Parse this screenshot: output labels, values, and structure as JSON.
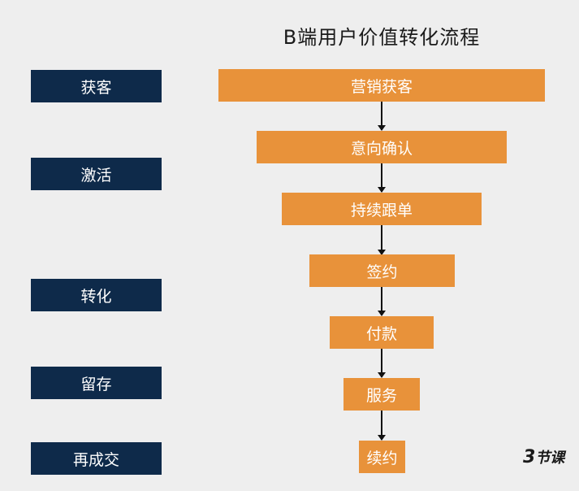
{
  "title": "B端用户价值转化流程",
  "stages": [
    "获客",
    "激活",
    "转化",
    "留存",
    "再成交"
  ],
  "steps": [
    "营销获客",
    "意向确认",
    "持续跟单",
    "签约",
    "付款",
    "服务",
    "续约"
  ],
  "colors": {
    "background": "#eeeeee",
    "stage_box": "#0e2a4a",
    "step_box": "#e8923a",
    "text_on_box": "#ffffff",
    "arrow": "#111111"
  },
  "logo": {
    "text": "节课"
  }
}
